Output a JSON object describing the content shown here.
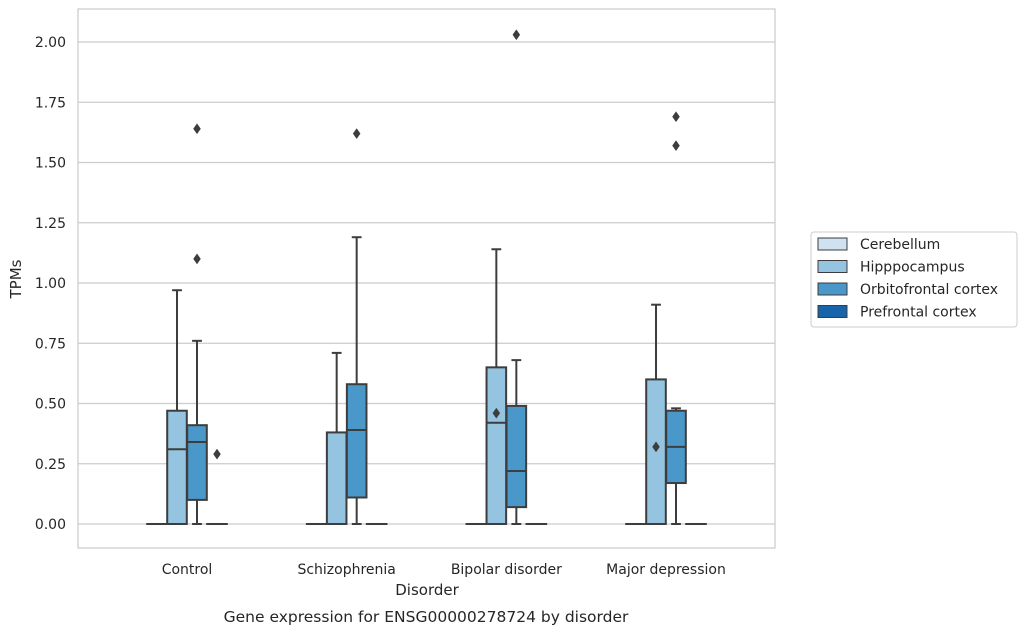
{
  "chart_data": {
    "type": "box",
    "title": "",
    "caption": "Gene expression for ENSG00000278724 by disorder",
    "xlabel": "Disorder",
    "ylabel": "TPMs",
    "ylim": [
      -0.1,
      2.13
    ],
    "yticks": [
      0.0,
      0.25,
      0.5,
      0.75,
      1.0,
      1.25,
      1.5,
      1.75,
      2.0
    ],
    "ytick_labels": [
      "0.00",
      "0.25",
      "0.50",
      "0.75",
      "1.00",
      "1.25",
      "1.50",
      "1.75",
      "2.00"
    ],
    "categories": [
      "Control",
      "Schizophrenia",
      "Bipolar disorder",
      "Major depression"
    ],
    "grid": "horizontal",
    "legend_position": "right",
    "series": [
      {
        "name": "Cerebellum",
        "color": "#d0e1f2",
        "boxes": [
          {
            "min": 0,
            "q1": 0,
            "median": 0,
            "q3": 0,
            "max": 0,
            "outliers": []
          },
          {
            "min": 0,
            "q1": 0,
            "median": 0,
            "q3": 0,
            "max": 0,
            "outliers": []
          },
          {
            "min": 0,
            "q1": 0,
            "median": 0,
            "q3": 0,
            "max": 0,
            "outliers": []
          },
          {
            "min": 0,
            "q1": 0,
            "median": 0,
            "q3": 0,
            "max": 0,
            "outliers": []
          }
        ]
      },
      {
        "name": "Hipppocampus",
        "color": "#94c4df",
        "boxes": [
          {
            "min": 0,
            "q1": 0,
            "median": 0.31,
            "q3": 0.47,
            "max": 0.97,
            "outliers": []
          },
          {
            "min": 0,
            "q1": 0,
            "median": 0,
            "q3": 0.38,
            "max": 0.71,
            "outliers": []
          },
          {
            "min": 0,
            "q1": 0,
            "median": 0.42,
            "q3": 0.65,
            "max": 1.14,
            "outliers": [
              0.46
            ]
          },
          {
            "min": 0,
            "q1": 0,
            "median": 0,
            "q3": 0.6,
            "max": 0.91,
            "outliers": [
              0.32
            ]
          }
        ]
      },
      {
        "name": "Orbitofrontal cortex",
        "color": "#4a98c9",
        "boxes": [
          {
            "min": 0,
            "q1": 0.1,
            "median": 0.34,
            "q3": 0.41,
            "max": 0.76,
            "outliers": [
              1.64,
              1.1
            ]
          },
          {
            "min": 0,
            "q1": 0.11,
            "median": 0.39,
            "q3": 0.58,
            "max": 1.19,
            "outliers": [
              1.62
            ]
          },
          {
            "min": 0,
            "q1": 0.07,
            "median": 0.22,
            "q3": 0.49,
            "max": 0.68,
            "outliers": [
              2.03
            ]
          },
          {
            "min": 0,
            "q1": 0.17,
            "median": 0.32,
            "q3": 0.47,
            "max": 0.48,
            "outliers": [
              1.57,
              1.69
            ]
          }
        ]
      },
      {
        "name": "Prefrontal cortex",
        "color": "#1764ab",
        "boxes": [
          {
            "min": 0,
            "q1": 0,
            "median": 0,
            "q3": 0,
            "max": 0,
            "outliers": [
              0.29
            ]
          },
          {
            "min": 0,
            "q1": 0,
            "median": 0,
            "q3": 0,
            "max": 0,
            "outliers": []
          },
          {
            "min": 0,
            "q1": 0,
            "median": 0,
            "q3": 0,
            "max": 0,
            "outliers": []
          },
          {
            "min": 0,
            "q1": 0,
            "median": 0,
            "q3": 0,
            "max": 0,
            "outliers": []
          }
        ]
      }
    ]
  }
}
